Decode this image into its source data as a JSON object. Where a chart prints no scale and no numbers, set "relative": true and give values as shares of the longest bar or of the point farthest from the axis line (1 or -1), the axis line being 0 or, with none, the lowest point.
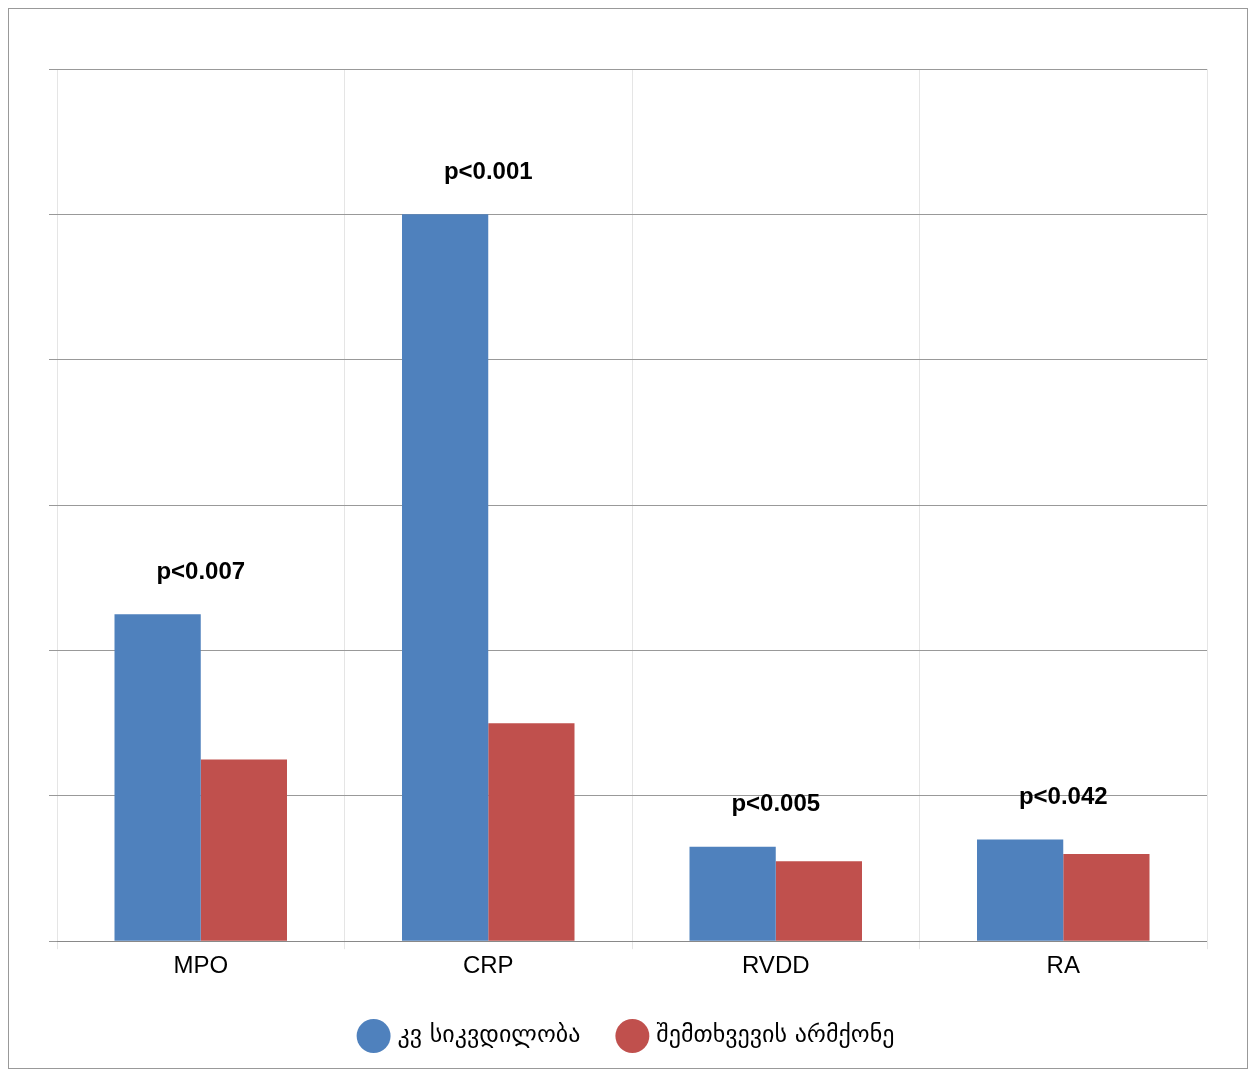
{
  "chart_data": {
    "type": "bar",
    "relative": true,
    "categories": [
      "MPO",
      "CRP",
      "RVDD",
      "RA"
    ],
    "series": [
      {
        "name": "კვ სიკვდილობა",
        "color": "#4f81bd",
        "values": [
          0.45,
          1,
          0.13,
          0.14
        ]
      },
      {
        "name": "შემთხვევის არმქონე",
        "color": "#c0504d",
        "values": [
          0.25,
          0.3,
          0.11,
          0.12
        ]
      }
    ],
    "annotations": [
      "p<0.007",
      "p<0.001",
      "p<0.005",
      "p<0.042"
    ],
    "grid": true,
    "legend": "bottom",
    "tick_labels": "x"
  }
}
